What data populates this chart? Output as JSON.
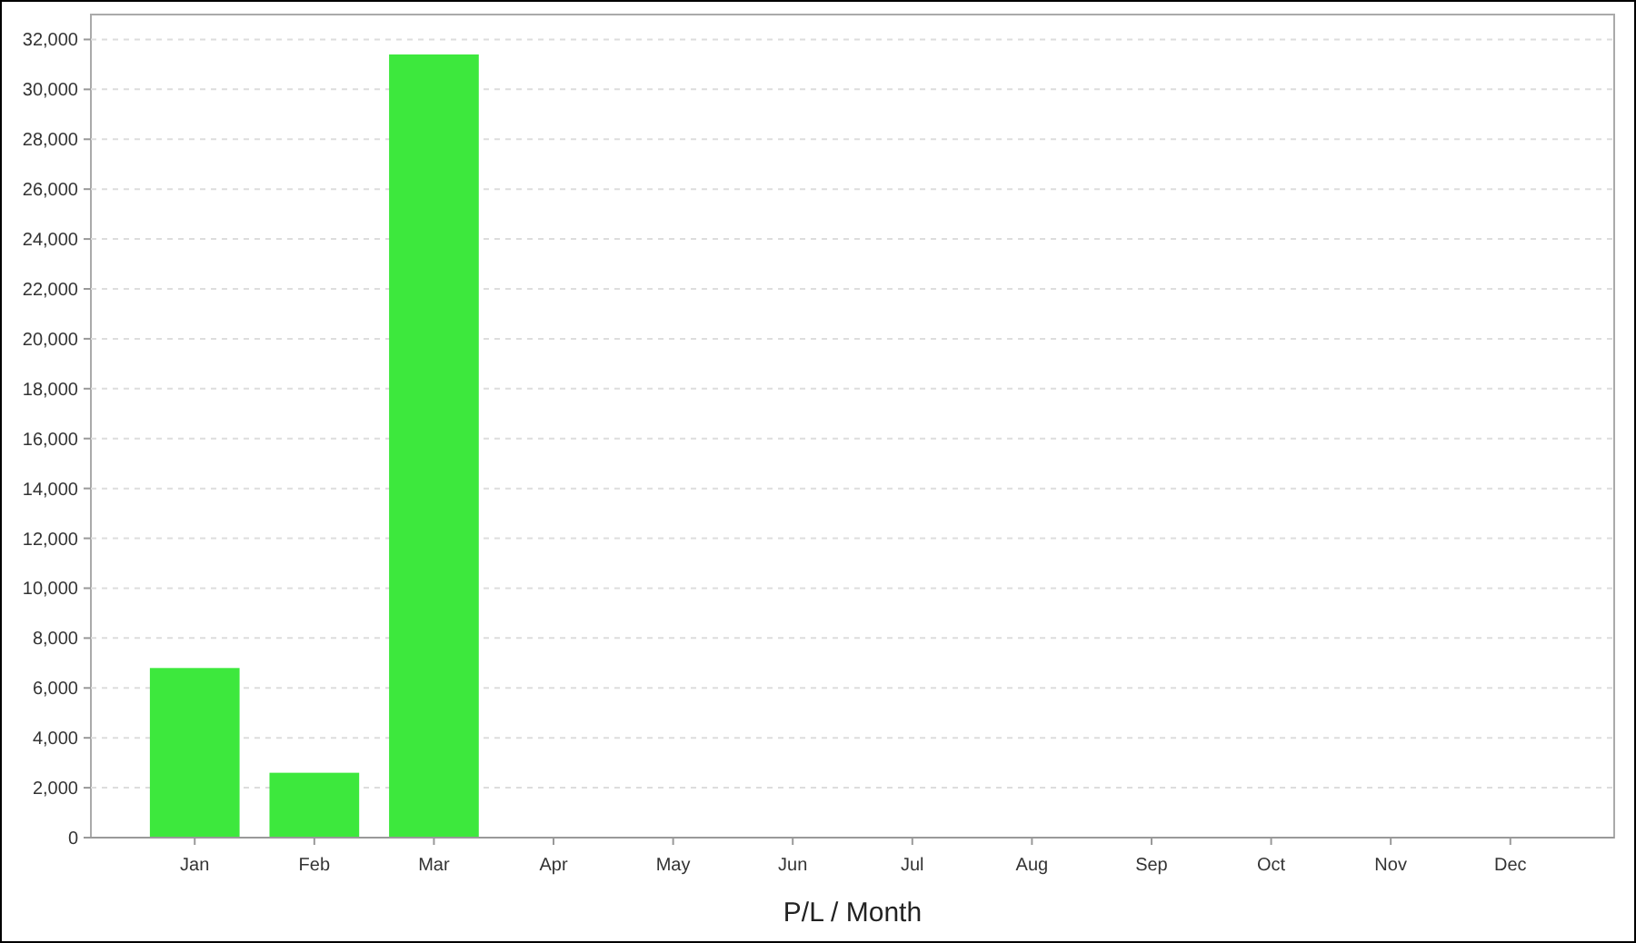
{
  "chart_data": {
    "type": "bar",
    "xlabel": "P/L / Month",
    "categories": [
      "Jan",
      "Feb",
      "Mar",
      "Apr",
      "May",
      "Jun",
      "Jul",
      "Aug",
      "Sep",
      "Oct",
      "Nov",
      "Dec"
    ],
    "values": [
      6800,
      2600,
      31400,
      null,
      null,
      null,
      null,
      null,
      null,
      null,
      null,
      null
    ],
    "color": "#3de83d",
    "ylim": [
      0,
      33000
    ],
    "yticks": [
      0,
      {
        "value": 2000,
        "label": "2,000"
      },
      {
        "value": 4000,
        "label": "4,000"
      },
      {
        "value": 6000,
        "label": "6,000"
      },
      {
        "value": 8000,
        "label": "8,000"
      },
      {
        "value": 10000,
        "label": "10,000"
      },
      {
        "value": 12000,
        "label": "12,000"
      },
      {
        "value": 14000,
        "label": "14,000"
      },
      {
        "value": 16000,
        "label": "16,000"
      },
      {
        "value": 18000,
        "label": "18,000"
      },
      {
        "value": 20000,
        "label": "20,000"
      },
      {
        "value": 22000,
        "label": "22,000"
      },
      {
        "value": 24000,
        "label": "24,000"
      },
      {
        "value": 26000,
        "label": "26,000"
      },
      {
        "value": 28000,
        "label": "28,000"
      },
      {
        "value": 30000,
        "label": "30,000"
      },
      {
        "value": 32000,
        "label": "32,000"
      }
    ],
    "grid": "y"
  }
}
